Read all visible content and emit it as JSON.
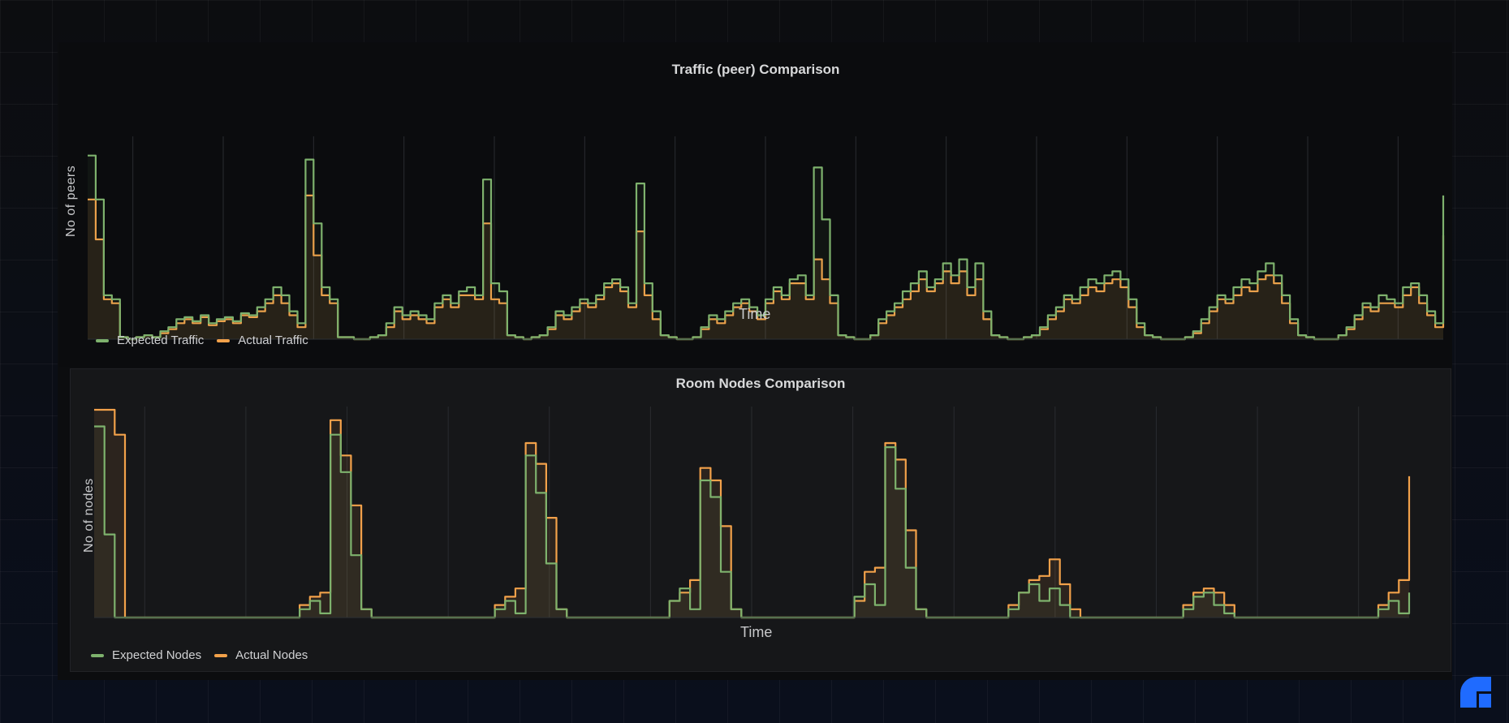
{
  "colors": {
    "expected": "#7eb26d",
    "actual": "#f2a14a",
    "grid": "#2a2c30",
    "fill": "rgba(242,161,74,0.10)",
    "logo": "#1f6bff"
  },
  "chart_data": [
    {
      "type": "line",
      "title": "Traffic (peer) Comparison",
      "xlabel": "Time",
      "ylabel": "No of peers",
      "legend_position": "bottom-left",
      "grid": true,
      "ylim": [
        0,
        100
      ],
      "gridlines_x": 15,
      "series": [
        {
          "name": "Expected Traffic",
          "color": "#7eb26d",
          "values": [
            92,
            70,
            22,
            20,
            1,
            0,
            1,
            2,
            1,
            4,
            6,
            10,
            11,
            9,
            12,
            8,
            10,
            11,
            9,
            13,
            12,
            16,
            20,
            26,
            22,
            14,
            8,
            90,
            58,
            26,
            20,
            1,
            1,
            0,
            0,
            1,
            2,
            8,
            16,
            12,
            14,
            12,
            10,
            18,
            22,
            18,
            24,
            26,
            22,
            80,
            28,
            24,
            2,
            1,
            0,
            1,
            2,
            6,
            14,
            12,
            16,
            20,
            18,
            22,
            28,
            30,
            26,
            18,
            78,
            28,
            14,
            2,
            1,
            0,
            0,
            1,
            6,
            12,
            10,
            14,
            18,
            20,
            16,
            12,
            20,
            26,
            22,
            30,
            32,
            22,
            86,
            60,
            22,
            2,
            1,
            0,
            0,
            2,
            10,
            14,
            18,
            24,
            28,
            34,
            26,
            30,
            38,
            32,
            40,
            26,
            38,
            14,
            2,
            1,
            0,
            0,
            1,
            2,
            6,
            12,
            16,
            22,
            20,
            26,
            30,
            28,
            32,
            34,
            30,
            20,
            8,
            2,
            1,
            0,
            0,
            0,
            1,
            4,
            10,
            16,
            22,
            20,
            26,
            30,
            28,
            34,
            38,
            32,
            22,
            10,
            2,
            1,
            0,
            0,
            0,
            2,
            6,
            12,
            18,
            16,
            22,
            20,
            18,
            26,
            28,
            22,
            14,
            8,
            72
          ]
        },
        {
          "name": "Actual Traffic",
          "color": "#f2a14a",
          "values": [
            70,
            50,
            20,
            18,
            1,
            0,
            1,
            2,
            1,
            3,
            5,
            8,
            10,
            8,
            11,
            7,
            9,
            10,
            8,
            12,
            11,
            14,
            18,
            22,
            18,
            12,
            6,
            72,
            42,
            22,
            18,
            1,
            1,
            0,
            0,
            1,
            2,
            6,
            14,
            10,
            12,
            10,
            8,
            16,
            20,
            16,
            22,
            22,
            20,
            58,
            20,
            18,
            2,
            1,
            0,
            1,
            2,
            5,
            12,
            10,
            14,
            18,
            16,
            20,
            26,
            28,
            24,
            16,
            54,
            22,
            10,
            2,
            1,
            0,
            0,
            1,
            5,
            10,
            8,
            12,
            16,
            18,
            14,
            10,
            18,
            24,
            20,
            28,
            28,
            20,
            40,
            30,
            18,
            2,
            1,
            0,
            0,
            2,
            8,
            12,
            16,
            20,
            24,
            30,
            24,
            28,
            34,
            28,
            34,
            22,
            30,
            10,
            2,
            1,
            0,
            0,
            1,
            2,
            5,
            10,
            14,
            20,
            18,
            22,
            26,
            24,
            28,
            30,
            26,
            16,
            6,
            2,
            1,
            0,
            0,
            0,
            1,
            3,
            8,
            14,
            20,
            18,
            22,
            26,
            24,
            30,
            32,
            28,
            18,
            8,
            2,
            1,
            0,
            0,
            0,
            2,
            5,
            10,
            16,
            14,
            18,
            18,
            16,
            22,
            26,
            18,
            12,
            6,
            52
          ]
        }
      ]
    },
    {
      "type": "line",
      "title": "Room Nodes Comparison",
      "xlabel": "Time",
      "ylabel": "No of nodes",
      "legend_position": "bottom-left",
      "grid": true,
      "ylim": [
        0,
        100
      ],
      "gridlines_x": 13,
      "series": [
        {
          "name": "Expected Nodes",
          "color": "#7eb26d",
          "values": [
            92,
            40,
            0,
            0,
            0,
            0,
            0,
            0,
            0,
            0,
            0,
            0,
            0,
            0,
            0,
            0,
            0,
            0,
            0,
            0,
            4,
            8,
            2,
            88,
            70,
            30,
            4,
            0,
            0,
            0,
            0,
            0,
            0,
            0,
            0,
            0,
            0,
            0,
            0,
            4,
            8,
            2,
            78,
            60,
            26,
            4,
            0,
            0,
            0,
            0,
            0,
            0,
            0,
            0,
            0,
            0,
            8,
            14,
            4,
            66,
            58,
            22,
            4,
            0,
            0,
            0,
            0,
            0,
            0,
            0,
            0,
            0,
            0,
            0,
            10,
            16,
            6,
            82,
            62,
            24,
            4,
            0,
            0,
            0,
            0,
            0,
            0,
            0,
            0,
            4,
            12,
            16,
            8,
            14,
            6,
            0,
            0,
            0,
            0,
            0,
            0,
            0,
            0,
            0,
            0,
            0,
            4,
            10,
            12,
            6,
            2,
            0,
            0,
            0,
            0,
            0,
            0,
            0,
            0,
            0,
            0,
            0,
            0,
            0,
            0,
            4,
            8,
            2,
            12
          ]
        },
        {
          "name": "Actual Nodes",
          "color": "#f2a14a",
          "values": [
            100,
            100,
            88,
            0,
            0,
            0,
            0,
            0,
            0,
            0,
            0,
            0,
            0,
            0,
            0,
            0,
            0,
            0,
            0,
            0,
            6,
            10,
            12,
            95,
            78,
            54,
            4,
            0,
            0,
            0,
            0,
            0,
            0,
            0,
            0,
            0,
            0,
            0,
            0,
            6,
            10,
            14,
            84,
            74,
            48,
            4,
            0,
            0,
            0,
            0,
            0,
            0,
            0,
            0,
            0,
            0,
            8,
            12,
            18,
            72,
            66,
            44,
            4,
            0,
            0,
            0,
            0,
            0,
            0,
            0,
            0,
            0,
            0,
            0,
            8,
            22,
            24,
            84,
            76,
            42,
            4,
            0,
            0,
            0,
            0,
            0,
            0,
            0,
            0,
            6,
            12,
            18,
            20,
            28,
            16,
            4,
            0,
            0,
            0,
            0,
            0,
            0,
            0,
            0,
            0,
            0,
            6,
            12,
            14,
            12,
            6,
            0,
            0,
            0,
            0,
            0,
            0,
            0,
            0,
            0,
            0,
            0,
            0,
            0,
            0,
            6,
            12,
            18,
            68
          ]
        }
      ]
    }
  ],
  "logo": {
    "icon": "quadrant-logo-icon"
  }
}
